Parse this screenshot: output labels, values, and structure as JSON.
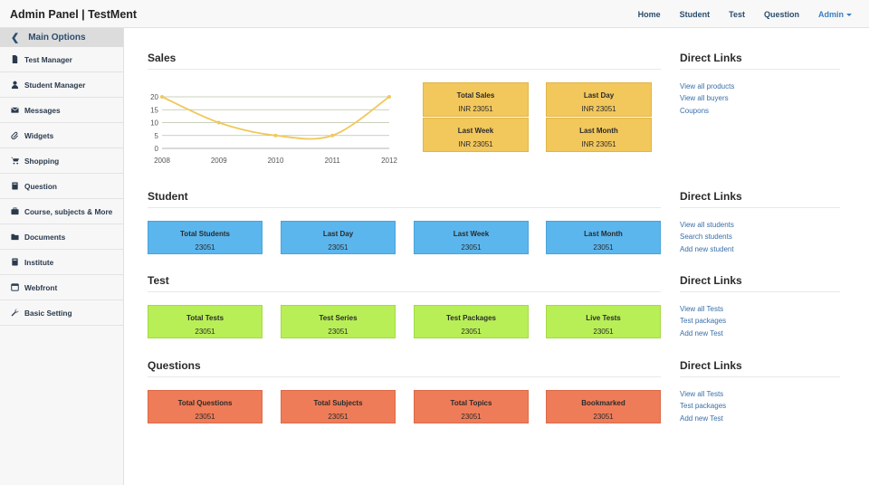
{
  "header": {
    "brand": "Admin Panel | TestMent",
    "nav": [
      "Home",
      "Student",
      "Test",
      "Question"
    ],
    "admin_label": "Admin"
  },
  "sidebar": {
    "head": "Main Options",
    "items": [
      {
        "label": "Test Manager",
        "icon": "file-icon"
      },
      {
        "label": "Student Manager",
        "icon": "user-icon"
      },
      {
        "label": "Messages",
        "icon": "envelope-icon"
      },
      {
        "label": "Widgets",
        "icon": "paperclip-icon"
      },
      {
        "label": "Shopping",
        "icon": "cart-icon"
      },
      {
        "label": "Question",
        "icon": "book-icon"
      },
      {
        "label": "Course, subjects & More",
        "icon": "briefcase-icon"
      },
      {
        "label": "Documents",
        "icon": "folder-icon"
      },
      {
        "label": "Institute",
        "icon": "book-icon"
      },
      {
        "label": "Webfront",
        "icon": "window-icon"
      },
      {
        "label": "Basic Setting",
        "icon": "wrench-icon"
      }
    ]
  },
  "sales": {
    "title": "Sales",
    "cards": [
      {
        "label": "Total Sales",
        "value": "INR 23051"
      },
      {
        "label": "Last Day",
        "value": "INR 23051"
      },
      {
        "label": "Last Week",
        "value": "INR 23051"
      },
      {
        "label": "Last Month",
        "value": "INR 23051"
      }
    ]
  },
  "chart_data": {
    "type": "line",
    "x": [
      "2008",
      "2009",
      "2010",
      "2011",
      "2012"
    ],
    "series": [
      {
        "values": [
          20,
          10,
          5,
          5,
          20
        ]
      }
    ],
    "ylim": [
      0,
      20
    ],
    "yticks": [
      "0",
      "5",
      "10",
      "15",
      "20"
    ],
    "line_color": "#f0c85a",
    "grid": true
  },
  "student": {
    "title": "Student",
    "cards": [
      {
        "label": "Total Students",
        "value": "23051"
      },
      {
        "label": "Last Day",
        "value": "23051"
      },
      {
        "label": "Last Week",
        "value": "23051"
      },
      {
        "label": "Last Month",
        "value": "23051"
      }
    ]
  },
  "test": {
    "title": "Test",
    "cards": [
      {
        "label": "Total Tests",
        "value": "23051"
      },
      {
        "label": "Test Series",
        "value": "23051"
      },
      {
        "label": "Test Packages",
        "value": "23051"
      },
      {
        "label": "Live Tests",
        "value": "23051"
      }
    ]
  },
  "questions": {
    "title": "Questions",
    "cards": [
      {
        "label": "Total Questions",
        "value": "23051"
      },
      {
        "label": "Total Subjects",
        "value": "23051"
      },
      {
        "label": "Total Topics",
        "value": "23051"
      },
      {
        "label": "Bookmarked",
        "value": "23051"
      }
    ]
  },
  "direct_links": {
    "title": "Direct Links",
    "sales": [
      "View all products",
      "View all buyers",
      "Coupons"
    ],
    "student": [
      "View all students",
      "Search students",
      "Add new student"
    ],
    "test": [
      "View all Tests",
      "Test packages",
      "Add new Test"
    ],
    "questions": [
      "View all Tests",
      "Test packages",
      "Add new Test"
    ]
  },
  "colors": {
    "sales": "#f2c75c",
    "student": "#5bb6ee",
    "test": "#b8ef57",
    "questions": "#ef7c58",
    "link": "#3a6fa8"
  }
}
